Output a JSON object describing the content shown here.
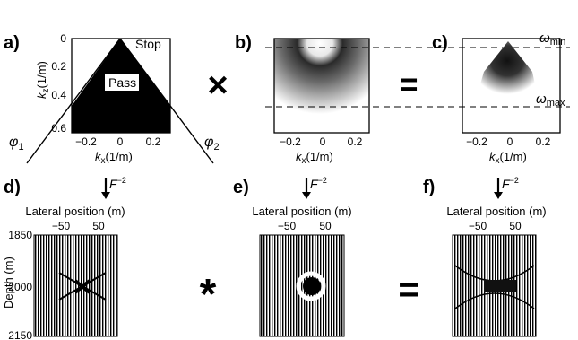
{
  "panels": {
    "a": {
      "letter": "a)",
      "stop": "Stop",
      "pass": "Pass",
      "yticks": [
        "0",
        "0.2",
        "0.4",
        "0.6"
      ],
      "xticks": [
        "−0.2",
        "0",
        "0.2"
      ],
      "ylabel_main": "k",
      "ylabel_sub": "z",
      "ylabel_unit": "(1/m)",
      "xlabel_main": "k",
      "xlabel_sub": "x",
      "xlabel_unit": "(1/m)",
      "phi1_main": "φ",
      "phi1_sub": "1",
      "phi2_main": "φ",
      "phi2_sub": "2"
    },
    "b": {
      "letter": "b)",
      "xticks": [
        "−0.2",
        "0",
        "0.2"
      ],
      "xlabel_main": "k",
      "xlabel_sub": "x",
      "xlabel_unit": "(1/m)"
    },
    "c": {
      "letter": "c)",
      "xticks": [
        "−0.2",
        "0",
        "0.2"
      ],
      "xlabel_main": "k",
      "xlabel_sub": "x",
      "xlabel_unit": "(1/m)",
      "wmin_main": "ω",
      "wmin_sub": "min",
      "wmax_main": "ω",
      "wmax_sub": "max"
    },
    "d": {
      "letter": "d)",
      "force_main": "F",
      "force_sup": "−2",
      "xlabel": "Lateral position (m)",
      "xticks": [
        "−50",
        "50"
      ],
      "ylabel": "Depth (m)",
      "yticks": [
        "1850",
        "2000",
        "2150"
      ]
    },
    "e": {
      "letter": "e)",
      "force_main": "F",
      "force_sup": "−2",
      "xlabel": "Lateral position (m)",
      "xticks": [
        "−50",
        "50"
      ]
    },
    "f": {
      "letter": "f)",
      "force_main": "F",
      "force_sup": "−2",
      "xlabel": "Lateral position (m)",
      "xticks": [
        "−50",
        "50"
      ]
    }
  },
  "operators": {
    "multiply": "×",
    "equals1": "=",
    "convolve": "*",
    "equals2": "="
  }
}
